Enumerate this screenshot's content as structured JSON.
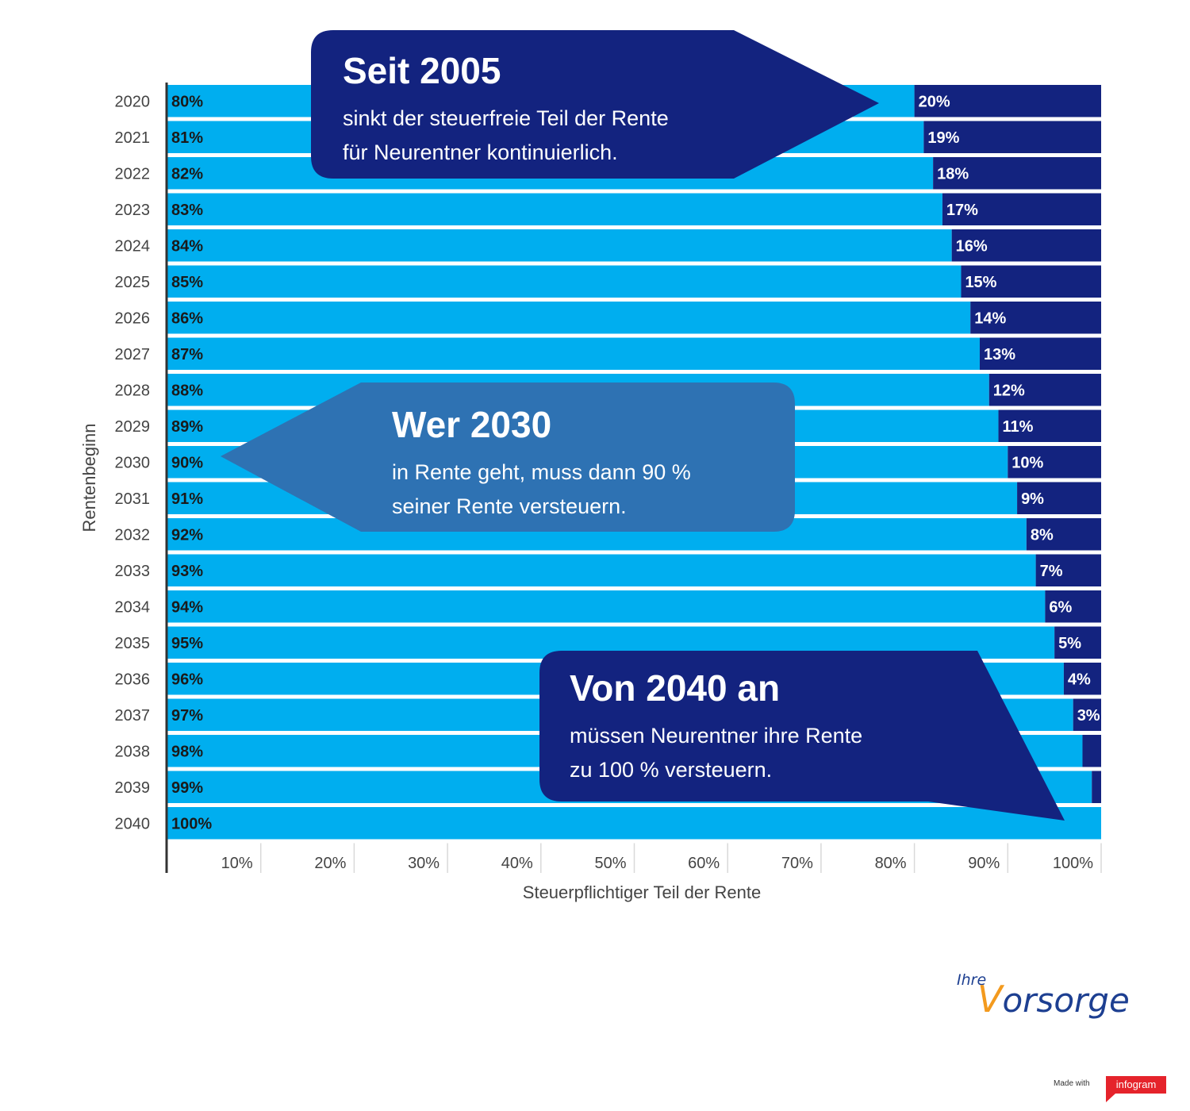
{
  "colors": {
    "taxable": "#00aeef",
    "taxfree": "#13237f",
    "bubble_dark": "#13237f",
    "bubble_mid": "#2e72b3",
    "axis": "#333333",
    "grid": "#d9d9d9",
    "label_dark": "#1a1a1a",
    "label_light": "#ffffff",
    "tick": "#444444"
  },
  "chart_data": {
    "type": "bar",
    "orientation": "horizontal",
    "stacked": true,
    "categories": [
      "2020",
      "2021",
      "2022",
      "2023",
      "2024",
      "2025",
      "2026",
      "2027",
      "2028",
      "2029",
      "2030",
      "2031",
      "2032",
      "2033",
      "2034",
      "2035",
      "2036",
      "2037",
      "2038",
      "2039",
      "2040"
    ],
    "series": [
      {
        "values": [
          80,
          81,
          82,
          83,
          84,
          85,
          86,
          87,
          88,
          89,
          90,
          91,
          92,
          93,
          94,
          95,
          96,
          97,
          98,
          99,
          100
        ],
        "labels": [
          "80%",
          "81%",
          "82%",
          "83%",
          "84%",
          "85%",
          "86%",
          "87%",
          "88%",
          "89%",
          "90%",
          "91%",
          "92%",
          "93%",
          "94%",
          "95%",
          "96%",
          "97%",
          "98%",
          "99%",
          "100%"
        ]
      },
      {
        "values": [
          20,
          19,
          18,
          17,
          16,
          15,
          14,
          13,
          12,
          11,
          10,
          9,
          8,
          7,
          6,
          5,
          4,
          3,
          2,
          1,
          0
        ],
        "labels": [
          "20%",
          "19%",
          "18%",
          "17%",
          "16%",
          "15%",
          "14%",
          "13%",
          "12%",
          "11%",
          "10%",
          "9%",
          "8%",
          "7%",
          "6%",
          "5%",
          "4%",
          "3%",
          "",
          "",
          ""
        ]
      }
    ],
    "xlabel": "Steuerpflichtiger Teil der Rente",
    "ylabel": "Rentenbeginn",
    "xlim": [
      0,
      100
    ],
    "xticks": [
      "10%",
      "20%",
      "30%",
      "40%",
      "50%",
      "60%",
      "70%",
      "80%",
      "90%",
      "100%"
    ],
    "grid": true
  },
  "callouts": [
    {
      "headline": "Seit 2005",
      "line1": "sinkt der steuerfreie Teil der Rente",
      "line2": "für Neurentner kontinuierlich."
    },
    {
      "headline": "Wer 2030",
      "line1": "in Rente geht, muss dann 90 %",
      "line2": "seiner Rente versteuern."
    },
    {
      "headline": "Von 2040 an",
      "line1": "müssen Neurentner ihre Rente",
      "line2": "zu 100 % versteuern."
    }
  ],
  "logo": {
    "prefix": "Ihre",
    "initial": "V",
    "rest": "orsorge"
  },
  "footer": {
    "made_with": "Made with",
    "tool": "infogram"
  }
}
